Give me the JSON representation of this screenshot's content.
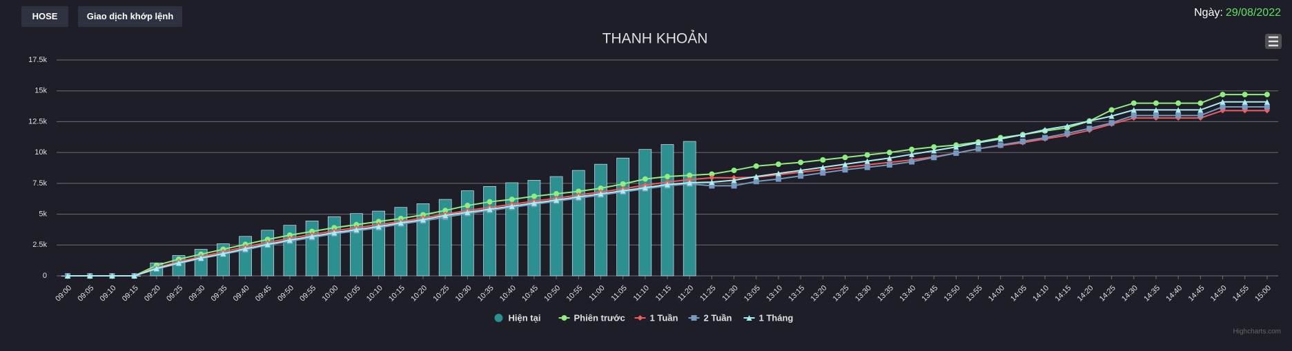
{
  "header": {
    "buttons": [
      "HOSE",
      "Giao dịch khớp lệnh"
    ],
    "date_label": "Ngày:",
    "date": "29/08/2022"
  },
  "credits": "Highcharts.com",
  "chart_data": {
    "type": "combo",
    "title": "THANH KHOẢN",
    "categories": [
      "09:00",
      "09:05",
      "09:10",
      "09:15",
      "09:20",
      "09:25",
      "09:30",
      "09:35",
      "09:40",
      "09:45",
      "09:50",
      "09:55",
      "10:00",
      "10:05",
      "10:10",
      "10:15",
      "10:20",
      "10:25",
      "10:30",
      "10:35",
      "10:40",
      "10:45",
      "10:50",
      "10:55",
      "11:00",
      "11:05",
      "11:10",
      "11:15",
      "11:20",
      "11:25",
      "11:30",
      "13:05",
      "13:10",
      "13:15",
      "13:20",
      "13:25",
      "13:30",
      "13:35",
      "13:40",
      "13:45",
      "13:50",
      "13:55",
      "14:00",
      "14:05",
      "14:10",
      "14:15",
      "14:20",
      "14:25",
      "14:30",
      "14:35",
      "14:40",
      "14:45",
      "14:50",
      "14:55",
      "15:00"
    ],
    "ylim": [
      0,
      17500
    ],
    "yticks": [
      0,
      {
        "value": 2500,
        "label": "2.5k"
      },
      {
        "value": 5000,
        "label": "5k"
      },
      {
        "value": 7500,
        "label": "7.5k"
      },
      {
        "value": 10000,
        "label": "10k"
      },
      {
        "value": 12500,
        "label": "12.5k"
      },
      {
        "value": 15000,
        "label": "15k"
      },
      {
        "value": 17500,
        "label": "17.5k"
      }
    ],
    "grid": true,
    "series": [
      {
        "name": "Hiện tại",
        "type": "bar",
        "marker": "circle",
        "color": "#2b908f",
        "values": [
          0,
          0,
          0,
          0,
          1050,
          1650,
          2150,
          2600,
          3200,
          3700,
          4100,
          4450,
          4800,
          5050,
          5250,
          5550,
          5850,
          6200,
          6900,
          7250,
          7550,
          7750,
          8050,
          8550,
          9050,
          9550,
          10250,
          10650,
          10900,
          null,
          null,
          null,
          null,
          null,
          null,
          null,
          null,
          null,
          null,
          null,
          null,
          null,
          null,
          null,
          null,
          null,
          null,
          null,
          null,
          null,
          null,
          null,
          null,
          null,
          null
        ]
      },
      {
        "name": "Phiên trước",
        "type": "line",
        "marker": "circle",
        "color": "#90ee7e",
        "values": [
          0,
          0,
          0,
          0,
          850,
          1350,
          1750,
          2150,
          2550,
          2950,
          3300,
          3600,
          3900,
          4150,
          4400,
          4650,
          4950,
          5300,
          5700,
          6000,
          6200,
          6450,
          6650,
          6850,
          7100,
          7450,
          7850,
          8050,
          8150,
          8250,
          8550,
          8900,
          9050,
          9200,
          9400,
          9600,
          9800,
          10000,
          10250,
          10450,
          10600,
          10850,
          11200,
          11450,
          11750,
          12000,
          12550,
          13450,
          14000,
          14000,
          14000,
          14000,
          14700,
          14700,
          14700
        ]
      },
      {
        "name": "1 Tuần",
        "type": "line",
        "marker": "diamond",
        "color": "#f45b5b",
        "values": [
          0,
          0,
          0,
          0,
          650,
          1150,
          1550,
          1950,
          2350,
          2700,
          3050,
          3350,
          3650,
          3900,
          4150,
          4400,
          4700,
          5000,
          5300,
          5550,
          5800,
          6050,
          6300,
          6550,
          6800,
          7050,
          7350,
          7600,
          7800,
          7950,
          7950,
          8000,
          8200,
          8400,
          8600,
          8800,
          9000,
          9200,
          9400,
          9650,
          9950,
          10300,
          10550,
          10800,
          11100,
          11400,
          11800,
          12300,
          12800,
          12800,
          12800,
          12800,
          13400,
          13400,
          13400
        ]
      },
      {
        "name": "2 Tuần",
        "type": "line",
        "marker": "square",
        "color": "#7798bf",
        "values": [
          0,
          0,
          0,
          0,
          550,
          1000,
          1400,
          1750,
          2100,
          2500,
          2800,
          3100,
          3400,
          3650,
          3900,
          4200,
          4450,
          4750,
          5050,
          5300,
          5550,
          5800,
          6050,
          6300,
          6550,
          6800,
          7050,
          7300,
          7450,
          7300,
          7300,
          7650,
          7850,
          8100,
          8350,
          8600,
          8800,
          9000,
          9250,
          9600,
          9950,
          10300,
          10600,
          10900,
          11200,
          11550,
          11950,
          12400,
          13000,
          13000,
          13000,
          13000,
          13700,
          13700,
          13700
        ]
      },
      {
        "name": "1 Tháng",
        "type": "line",
        "marker": "triangle",
        "color": "#aaeeee",
        "values": [
          0,
          0,
          0,
          0,
          600,
          1050,
          1450,
          1800,
          2200,
          2550,
          2900,
          3200,
          3500,
          3750,
          4000,
          4300,
          4550,
          4900,
          5150,
          5400,
          5650,
          5900,
          6150,
          6400,
          6650,
          6900,
          7150,
          7400,
          7550,
          7600,
          7750,
          8050,
          8300,
          8550,
          8800,
          9050,
          9300,
          9550,
          9850,
          10150,
          10450,
          10800,
          11100,
          11450,
          11850,
          12150,
          12550,
          12950,
          13450,
          13450,
          13450,
          13450,
          14100,
          14100,
          14100
        ]
      }
    ]
  }
}
